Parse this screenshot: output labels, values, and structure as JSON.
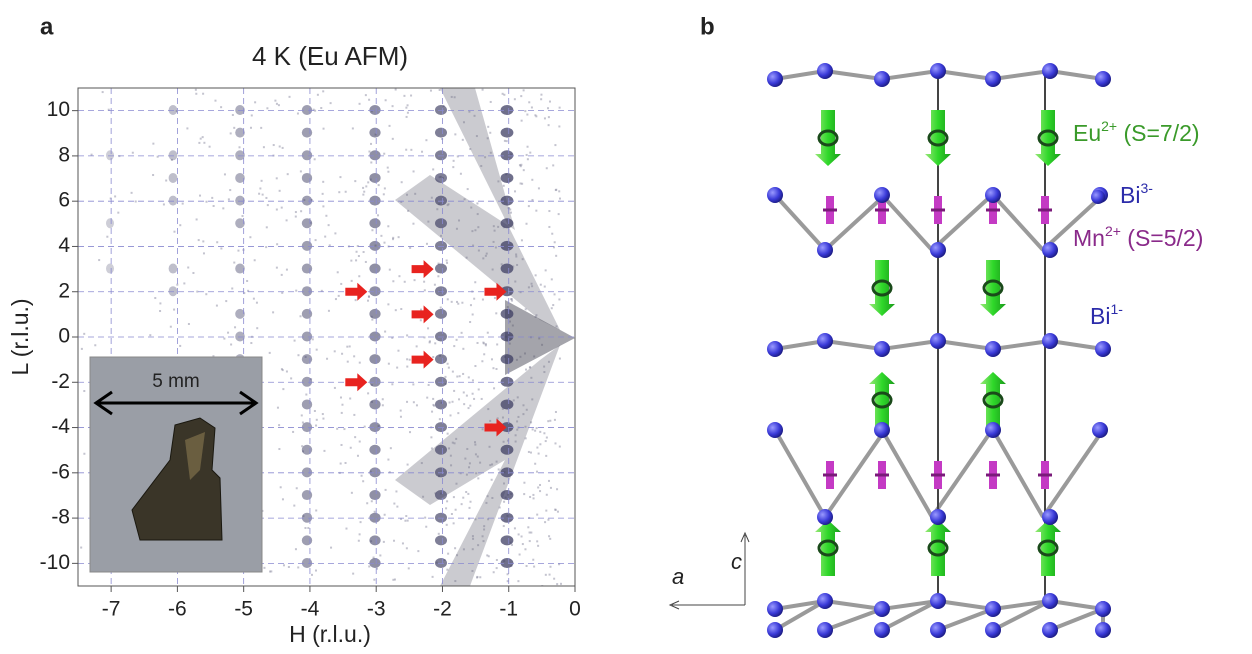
{
  "chart_data": {
    "type": "diffraction-map",
    "panel_label": "a",
    "title": "4 K (Eu AFM)",
    "xlabel": "H (r.l.u.)",
    "ylabel": "L (r.l.u.)",
    "xlim": [
      -7.5,
      0
    ],
    "xticks": [
      -7,
      -6,
      -5,
      -4,
      -3,
      -2,
      -1,
      0
    ],
    "ylim": [
      -11,
      11
    ],
    "yticks": [
      -10,
      -8,
      -6,
      -4,
      -2,
      0,
      2,
      4,
      6,
      8,
      10
    ],
    "grid": true,
    "arrows": {
      "x": [
        -3.3,
        -3.3,
        -2.3,
        -2.3,
        -2.3,
        -1.2,
        -1.2
      ],
      "y": [
        2,
        -2,
        3,
        1,
        -1,
        2,
        -4
      ],
      "color": "#e8231f"
    },
    "inset": {
      "scale_label": "5 mm"
    }
  },
  "structure": {
    "panel_label": "b",
    "labels": [
      {
        "text": "Eu",
        "sup": "2+",
        "suffix": " (S=7/2)",
        "color": "#3a9a2a"
      },
      {
        "text": "Bi",
        "sup": "3-",
        "color": "#2c2caa"
      },
      {
        "text": "Mn",
        "sup": "2+",
        "suffix": " (S=5/2)",
        "color": "#8a2a8a"
      },
      {
        "text": "Bi",
        "sup": "1-",
        "color": "#2c2caa"
      }
    ],
    "axes": {
      "c": "c",
      "a": "a"
    }
  }
}
